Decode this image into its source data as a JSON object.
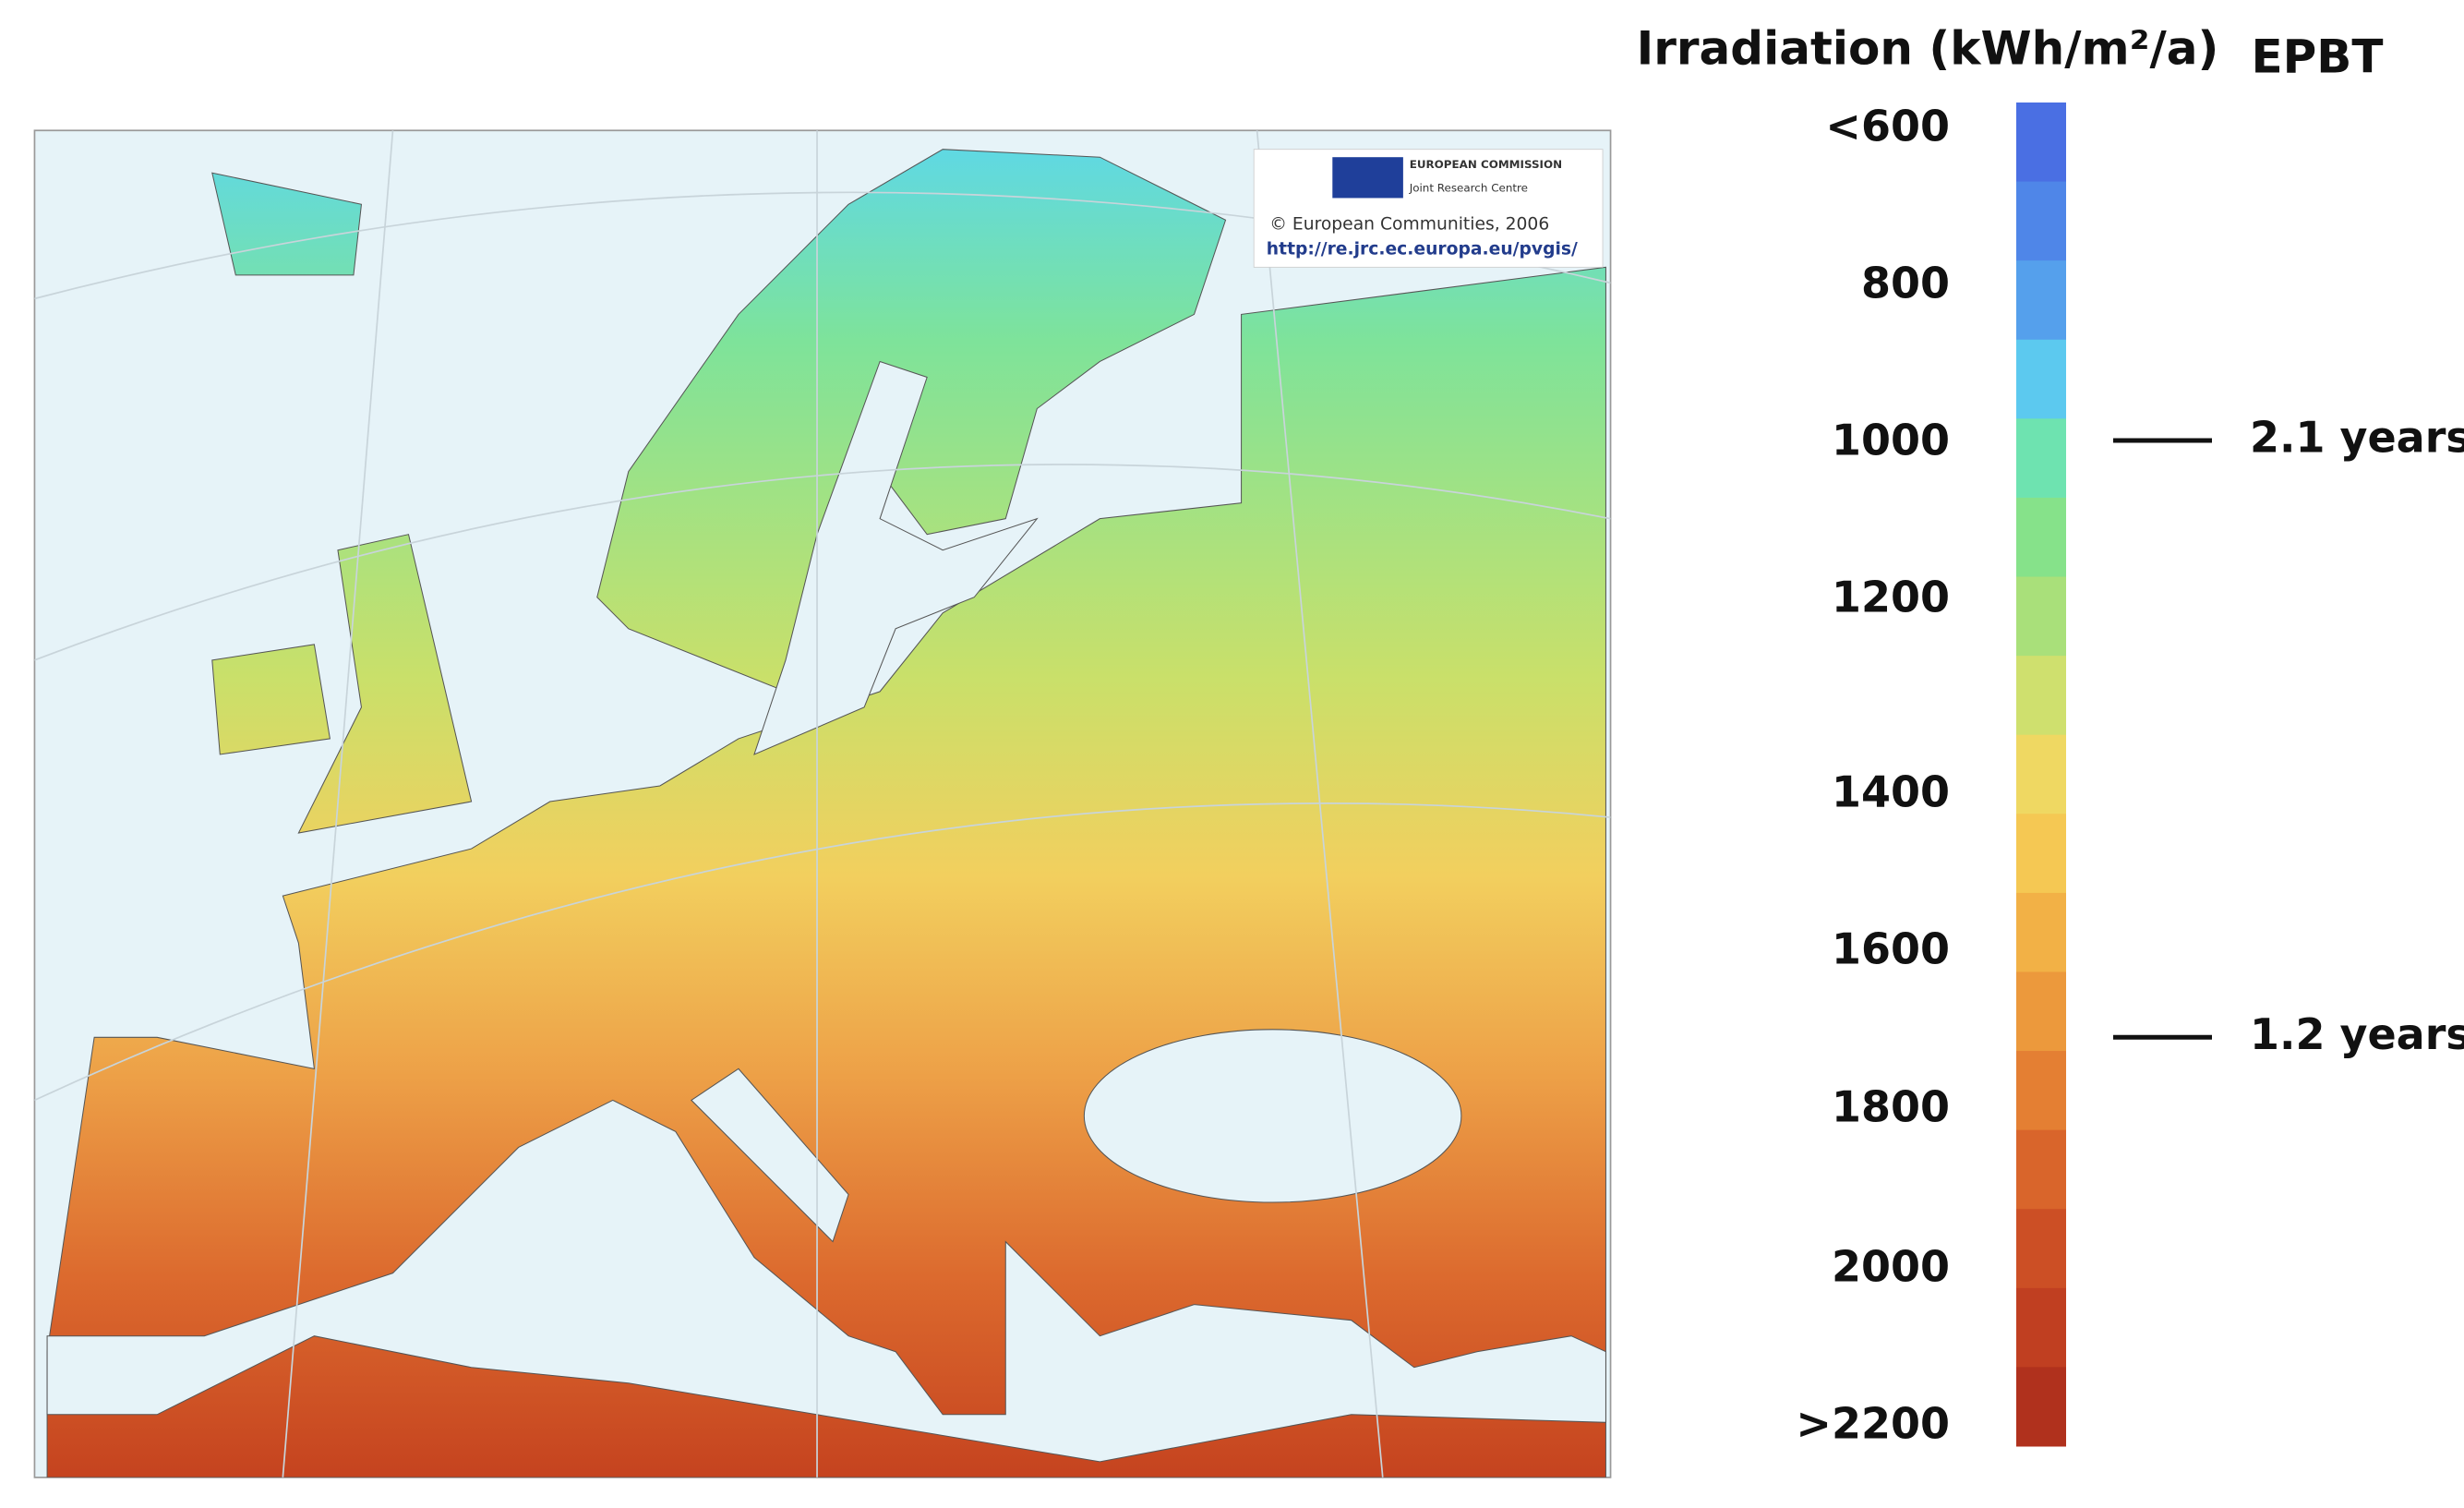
{
  "map": {
    "credits": {
      "agency": "EUROPEAN COMMISSION",
      "centre": "Joint Research Centre",
      "copyright": "© European Communities, 2006",
      "url": "http://re.jrc.ec.europa.eu/pvgis/"
    }
  },
  "legend": {
    "title": "Irradiation (kWh/m²/a)",
    "labels": [
      "<600",
      "800",
      "1000",
      "1200",
      "1400",
      "1600",
      "1800",
      "2000",
      ">2200"
    ],
    "colors": [
      "#4a6fe3",
      "#4f86e8",
      "#55a0ec",
      "#5cc9ef",
      "#6ee3b0",
      "#86e28a",
      "#a9e07a",
      "#cfe06e",
      "#efd862",
      "#f5c853",
      "#f2b146",
      "#ec993c",
      "#e47f33",
      "#d9652b",
      "#cc4f25",
      "#c03f21",
      "#b0311d"
    ]
  },
  "epbt": {
    "title": "EPBT",
    "markers": [
      {
        "label": "2.1 years",
        "irradiation": 1000
      },
      {
        "label": "1.2 years",
        "irradiation": 1700
      }
    ]
  }
}
